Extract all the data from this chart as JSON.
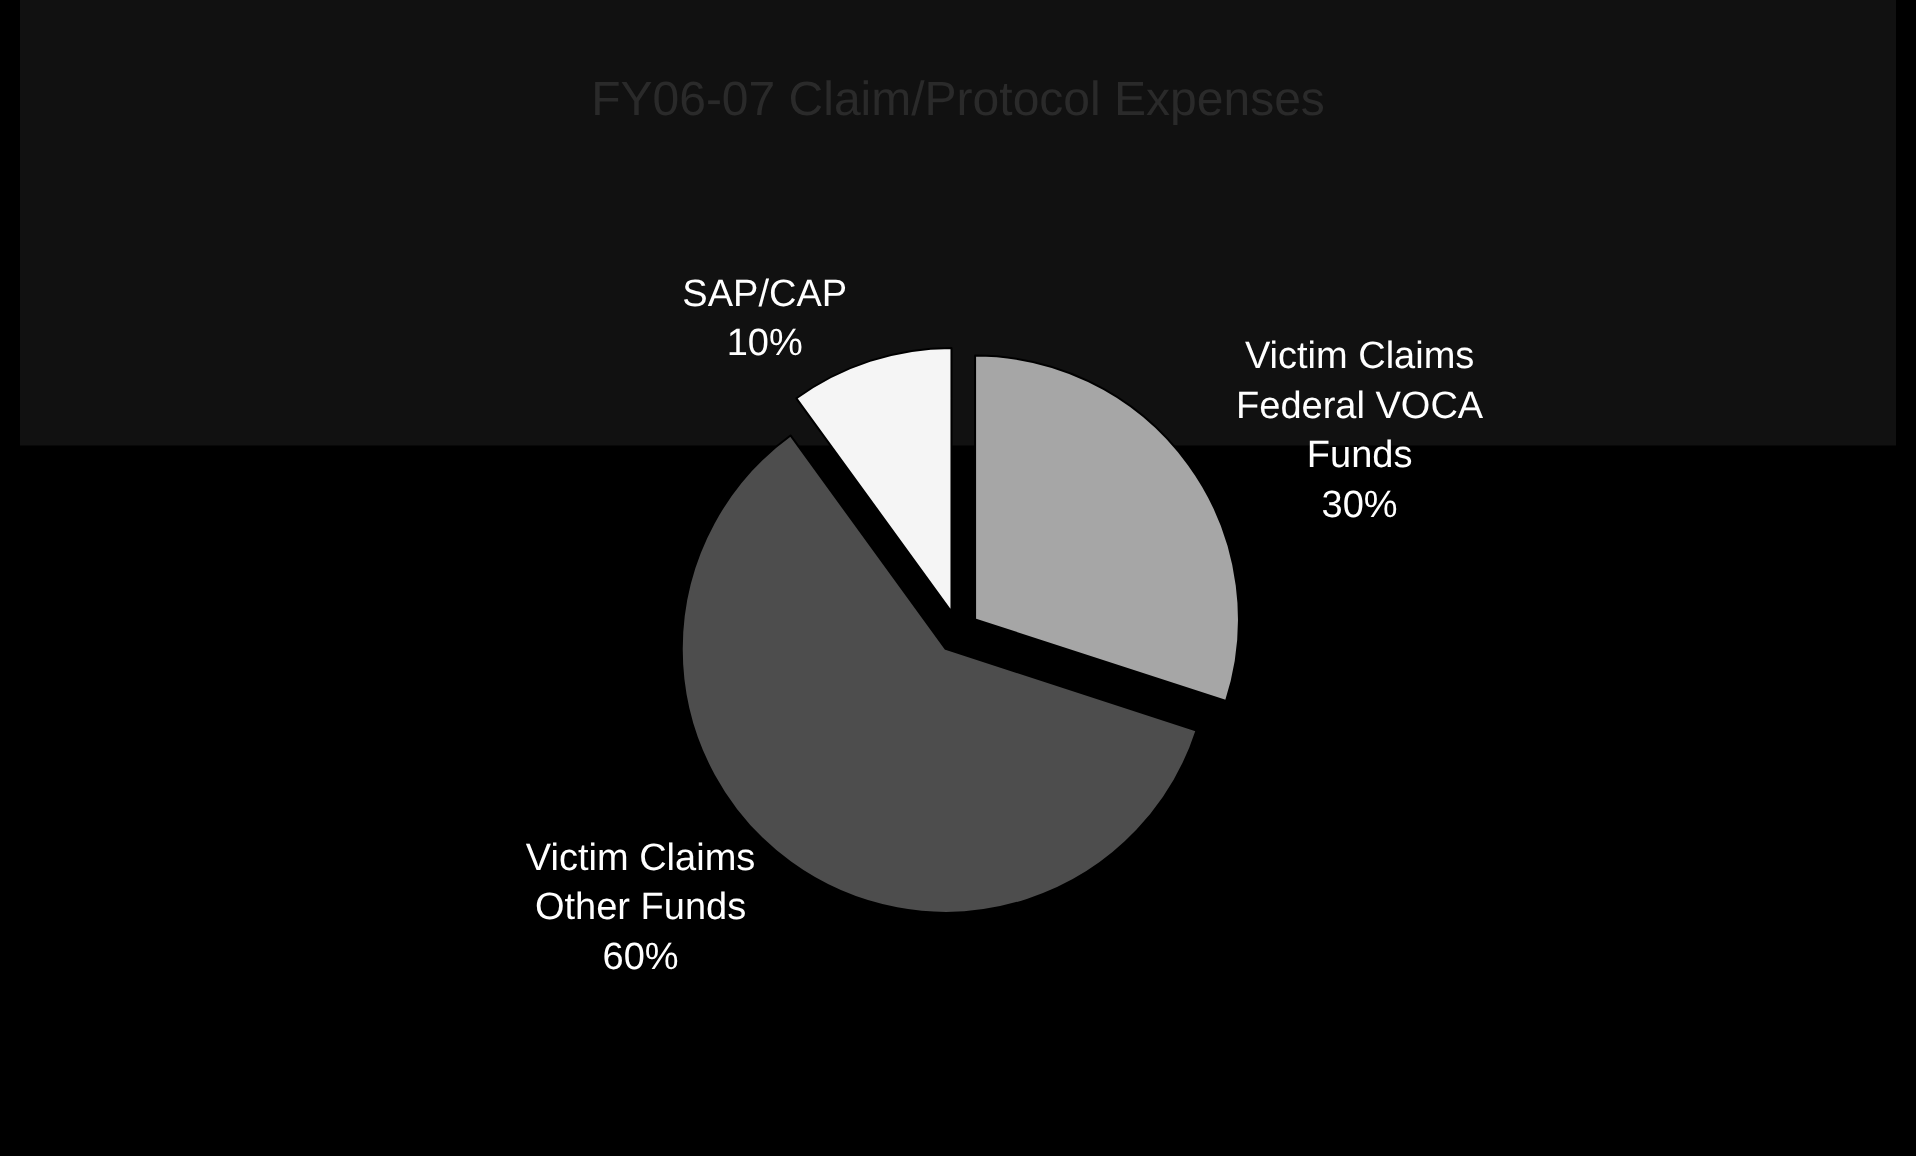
{
  "chart_data": {
    "type": "pie",
    "title": "FY06-07 Claim/Protocol Expenses",
    "categories": [
      "Victim Claims Federal VOCA Funds",
      "Victim Claims Other Funds",
      "SAP/CAP"
    ],
    "values": [
      30,
      60,
      10
    ],
    "value_labels": [
      "30%",
      "60%",
      "10%"
    ],
    "colors": [
      "#a6a6a6",
      "#4d4d4d",
      "#f5f5f5"
    ],
    "legend": false
  }
}
